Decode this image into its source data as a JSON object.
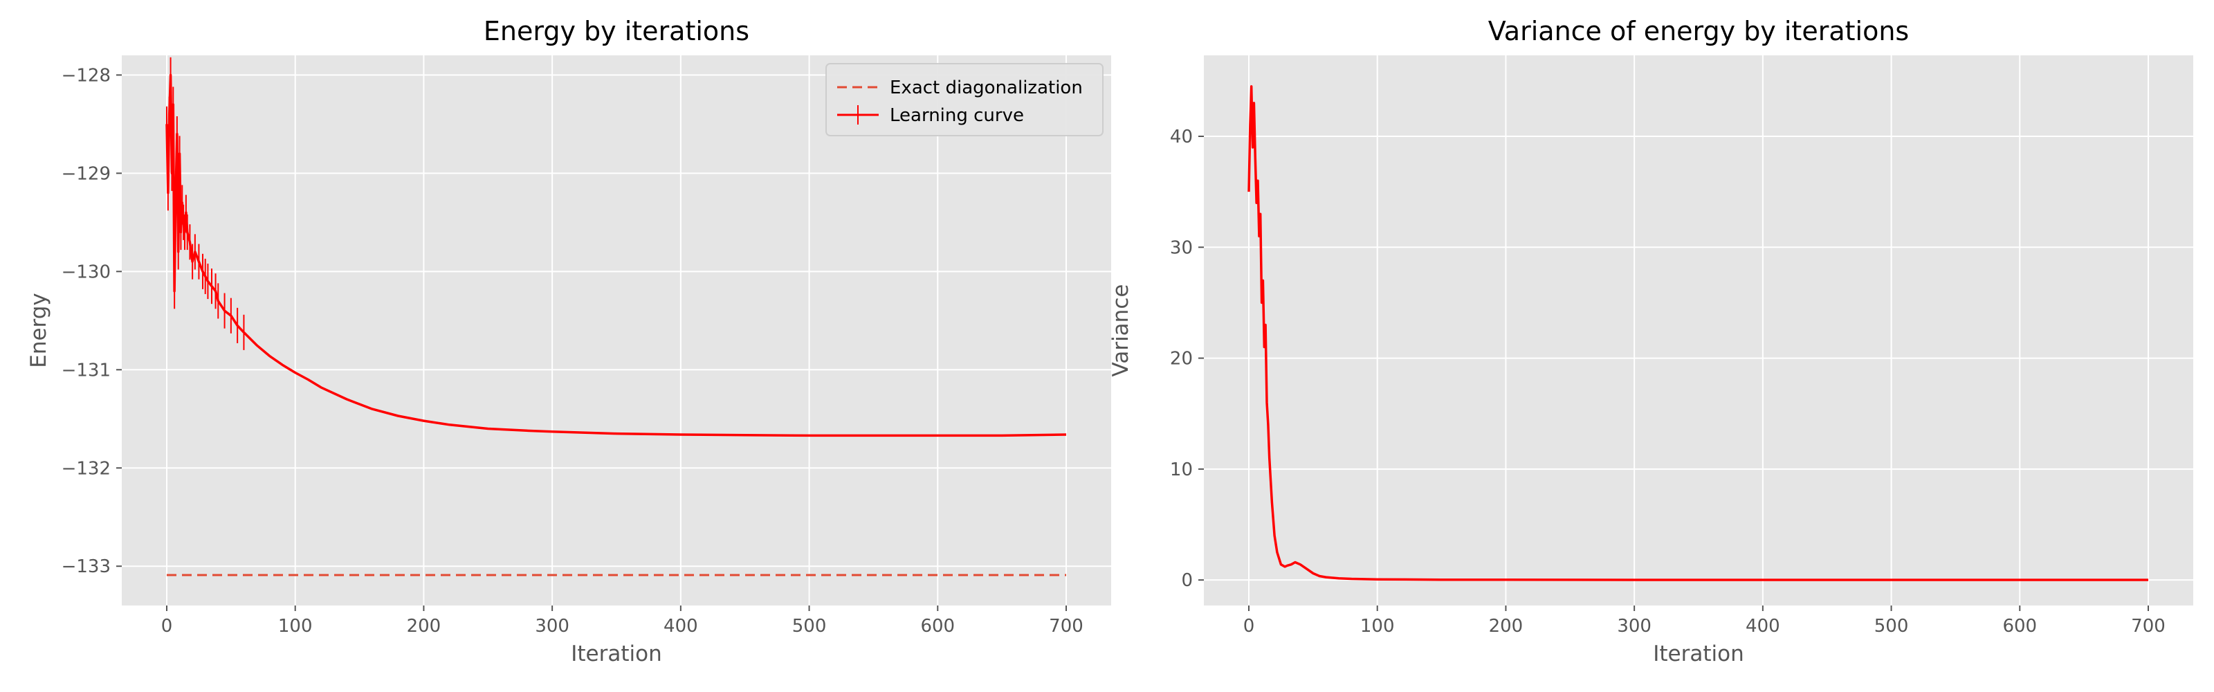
{
  "chart_data": [
    {
      "type": "line",
      "title": "Energy by iterations",
      "xlabel": "Iteration",
      "ylabel": "Energy",
      "xlim": [
        -35,
        735
      ],
      "ylim": [
        -133.4,
        -127.8
      ],
      "xticks": [
        0,
        100,
        200,
        300,
        400,
        500,
        600,
        700
      ],
      "xtick_labels": [
        "0",
        "100",
        "200",
        "300",
        "400",
        "500",
        "600",
        "700"
      ],
      "yticks": [
        -133,
        -132,
        -131,
        -130,
        -129,
        -128
      ],
      "ytick_labels": [
        "−133",
        "−132",
        "−131",
        "−130",
        "−129",
        "−128"
      ],
      "grid": true,
      "legend": {
        "position": "top-right",
        "entries": [
          "Exact diagonalization",
          "Learning curve"
        ]
      },
      "series": [
        {
          "name": "Exact diagonalization",
          "style": "dashed",
          "color": "#e24a33",
          "x": [
            0,
            700
          ],
          "y": [
            -133.09,
            -133.09
          ]
        },
        {
          "name": "Learning curve",
          "style": "solid-with-errorbars",
          "color": "#ff0000",
          "x": [
            0,
            1,
            2,
            3,
            4,
            5,
            6,
            7,
            8,
            9,
            10,
            11,
            12,
            13,
            14,
            15,
            16,
            18,
            20,
            22,
            25,
            28,
            30,
            32,
            35,
            38,
            40,
            45,
            50,
            55,
            60,
            70,
            80,
            90,
            100,
            110,
            120,
            140,
            160,
            180,
            200,
            220,
            250,
            280,
            300,
            350,
            400,
            450,
            500,
            550,
            600,
            650,
            700
          ],
          "y": [
            -128.5,
            -129.2,
            -128.4,
            -128.0,
            -129.0,
            -128.3,
            -130.2,
            -129.2,
            -128.6,
            -129.8,
            -128.8,
            -129.6,
            -129.3,
            -129.5,
            -129.6,
            -129.4,
            -129.6,
            -129.7,
            -129.9,
            -129.8,
            -129.9,
            -130.0,
            -130.05,
            -130.1,
            -130.15,
            -130.2,
            -130.3,
            -130.4,
            -130.45,
            -130.55,
            -130.62,
            -130.75,
            -130.86,
            -130.95,
            -131.03,
            -131.1,
            -131.18,
            -131.3,
            -131.4,
            -131.47,
            -131.52,
            -131.56,
            -131.6,
            -131.62,
            -131.63,
            -131.65,
            -131.66,
            -131.665,
            -131.67,
            -131.67,
            -131.67,
            -131.67,
            -131.66
          ]
        }
      ]
    },
    {
      "type": "line",
      "title": "Variance of energy by iterations",
      "xlabel": "Iteration",
      "ylabel": "Variance",
      "xlim": [
        -35,
        735
      ],
      "ylim": [
        -2.3,
        47.3
      ],
      "xticks": [
        0,
        100,
        200,
        300,
        400,
        500,
        600,
        700
      ],
      "xtick_labels": [
        "0",
        "100",
        "200",
        "300",
        "400",
        "500",
        "600",
        "700"
      ],
      "yticks": [
        0,
        10,
        20,
        30,
        40
      ],
      "ytick_labels": [
        "0",
        "10",
        "20",
        "30",
        "40"
      ],
      "grid": true,
      "series": [
        {
          "color": "#ff0000",
          "x": [
            0,
            1,
            2,
            3,
            4,
            5,
            6,
            7,
            8,
            9,
            10,
            11,
            12,
            13,
            14,
            15,
            16,
            18,
            20,
            22,
            25,
            28,
            30,
            33,
            36,
            40,
            45,
            50,
            55,
            60,
            70,
            80,
            100,
            150,
            200,
            300,
            400,
            500,
            600,
            700
          ],
          "y": [
            35,
            41,
            44.5,
            39,
            43,
            38,
            34,
            36,
            31,
            33,
            25,
            27,
            21,
            23,
            16,
            14,
            11,
            7,
            4,
            2.5,
            1.4,
            1.2,
            1.3,
            1.4,
            1.6,
            1.4,
            1.0,
            0.6,
            0.35,
            0.25,
            0.15,
            0.1,
            0.06,
            0.03,
            0.02,
            0.01,
            0.01,
            0.01,
            0.01,
            0.01
          ]
        }
      ]
    }
  ]
}
